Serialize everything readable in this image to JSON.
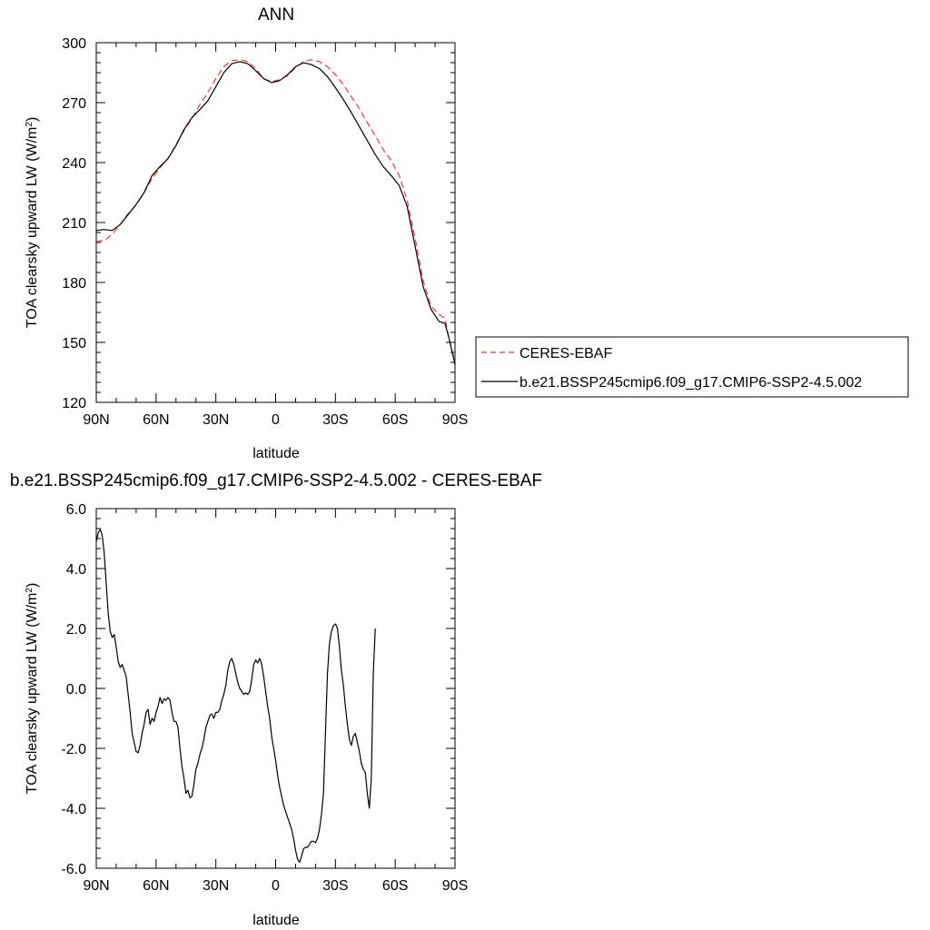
{
  "chart_data": [
    {
      "type": "line",
      "title": "ANN",
      "xlabel": "latitude",
      "ylabel": "TOA clearsky upward LW (W/m",
      "ylabel_sup": "2",
      "ylabel_end": ")",
      "xlim": [
        90,
        -90
      ],
      "ylim": [
        120,
        300
      ],
      "x_ticks": [
        {
          "value": 90,
          "label": "90N"
        },
        {
          "value": 60,
          "label": "60N"
        },
        {
          "value": 30,
          "label": "30N"
        },
        {
          "value": 0,
          "label": "0"
        },
        {
          "value": -30,
          "label": "30S"
        },
        {
          "value": -60,
          "label": "60S"
        },
        {
          "value": -90,
          "label": "90S"
        }
      ],
      "y_ticks": [
        {
          "value": 120,
          "label": "120"
        },
        {
          "value": 150,
          "label": "150"
        },
        {
          "value": 180,
          "label": "180"
        },
        {
          "value": 210,
          "label": "210"
        },
        {
          "value": 240,
          "label": "240"
        },
        {
          "value": 270,
          "label": "270"
        },
        {
          "value": 300,
          "label": "300"
        }
      ],
      "legend": {
        "placement": "right",
        "entries": [
          {
            "series": 0,
            "label": "CERES-EBAF"
          },
          {
            "series": 1,
            "label": "b.e21.BSSP245cmip6.f09_g17.CMIP6-SSP2-4.5.002"
          }
        ]
      },
      "series": [
        {
          "name": "CERES-EBAF",
          "color": "#ff3030",
          "dash": "dashed",
          "points": [
            [
              90,
              200.5
            ],
            [
              86,
              201
            ],
            [
              82,
              204
            ],
            [
              78,
              209
            ],
            [
              74,
              214.5
            ],
            [
              70,
              219
            ],
            [
              66,
              225
            ],
            [
              62,
              232
            ],
            [
              58,
              237.5
            ],
            [
              54,
              242
            ],
            [
              50,
              249
            ],
            [
              46,
              256
            ],
            [
              42,
              262
            ],
            [
              38,
              269
            ],
            [
              34,
              275
            ],
            [
              30,
              282
            ],
            [
              26,
              288
            ],
            [
              22,
              291
            ],
            [
              18,
              291.5
            ],
            [
              14,
              290.5
            ],
            [
              10,
              287
            ],
            [
              6,
              282
            ],
            [
              2,
              280.5
            ],
            [
              -2,
              281.5
            ],
            [
              -6,
              283.5
            ],
            [
              -10,
              287.5
            ],
            [
              -14,
              290.5
            ],
            [
              -18,
              291.5
            ],
            [
              -22,
              290.5
            ],
            [
              -26,
              288
            ],
            [
              -30,
              284
            ],
            [
              -34,
              279
            ],
            [
              -38,
              273
            ],
            [
              -42,
              267
            ],
            [
              -46,
              260
            ],
            [
              -50,
              253.5
            ],
            [
              -54,
              246.5
            ],
            [
              -58,
              241
            ],
            [
              -62,
              233.5
            ],
            [
              -66,
              221
            ],
            [
              -70,
              202
            ],
            [
              -74,
              181
            ],
            [
              -78,
              168
            ],
            [
              -82,
              164
            ],
            [
              -85,
              162
            ],
            [
              -87,
              152
            ],
            [
              -90,
              140
            ]
          ]
        },
        {
          "name": "b.e21.BSSP245cmip6.f09_g17.CMIP6-SSP2-4.5.002",
          "color": "#000000",
          "dash": "solid",
          "points": [
            [
              90,
              206
            ],
            [
              86,
              206.5
            ],
            [
              82,
              206
            ],
            [
              78,
              209
            ],
            [
              74,
              214
            ],
            [
              70,
              219
            ],
            [
              66,
              225
            ],
            [
              62,
              233.5
            ],
            [
              58,
              238
            ],
            [
              54,
              242
            ],
            [
              50,
              248.5
            ],
            [
              46,
              256.5
            ],
            [
              42,
              262.5
            ],
            [
              38,
              266.5
            ],
            [
              34,
              271
            ],
            [
              30,
              278
            ],
            [
              26,
              285
            ],
            [
              22,
              289.5
            ],
            [
              18,
              290.5
            ],
            [
              14,
              289.5
            ],
            [
              10,
              286
            ],
            [
              6,
              282
            ],
            [
              2,
              280
            ],
            [
              -2,
              281
            ],
            [
              -6,
              284
            ],
            [
              -10,
              288
            ],
            [
              -14,
              290
            ],
            [
              -18,
              289
            ],
            [
              -22,
              287
            ],
            [
              -26,
              283
            ],
            [
              -30,
              277.5
            ],
            [
              -34,
              271.5
            ],
            [
              -38,
              265
            ],
            [
              -42,
              258
            ],
            [
              -46,
              251
            ],
            [
              -50,
              244
            ],
            [
              -54,
              238
            ],
            [
              -58,
              233.5
            ],
            [
              -62,
              228.5
            ],
            [
              -66,
              218
            ],
            [
              -70,
              198
            ],
            [
              -74,
              178
            ],
            [
              -78,
              166.5
            ],
            [
              -82,
              160.5
            ],
            [
              -85,
              159.5
            ],
            [
              -87,
              152
            ],
            [
              -90,
              139
            ]
          ]
        }
      ]
    },
    {
      "type": "line",
      "title": "b.e21.BSSP245cmip6.f09_g17.CMIP6-SSP2-4.5.002 - CERES-EBAF",
      "xlabel": "latitude",
      "ylabel": "TOA clearsky upward LW (W/m",
      "ylabel_sup": "2",
      "ylabel_end": ")",
      "xlim": [
        90,
        -90
      ],
      "ylim": [
        -6,
        6
      ],
      "x_ticks": [
        {
          "value": 90,
          "label": "90N"
        },
        {
          "value": 60,
          "label": "60N"
        },
        {
          "value": 30,
          "label": "30N"
        },
        {
          "value": 0,
          "label": "0"
        },
        {
          "value": -30,
          "label": "30S"
        },
        {
          "value": -60,
          "label": "60S"
        },
        {
          "value": -90,
          "label": "90S"
        }
      ],
      "y_ticks": [
        {
          "value": 6,
          "label": "6.0"
        },
        {
          "value": 4,
          "label": "4.0"
        },
        {
          "value": 2,
          "label": "2.0"
        },
        {
          "value": 0,
          "label": "0.0"
        },
        {
          "value": -2,
          "label": "-2.0"
        },
        {
          "value": -4,
          "label": "-4.0"
        },
        {
          "value": -6,
          "label": "-6.0"
        }
      ],
      "series": [
        {
          "name": "",
          "color": "#000000",
          "dash": "solid",
          "points": [
            [
              90,
              4.9
            ],
            [
              89,
              5.2
            ],
            [
              88,
              5.3
            ],
            [
              87,
              5.1
            ],
            [
              86,
              4.5
            ],
            [
              85,
              3.5
            ],
            [
              84,
              2.5
            ],
            [
              83,
              1.9
            ],
            [
              82,
              1.7
            ],
            [
              81,
              1.8
            ],
            [
              80,
              1.4
            ],
            [
              79,
              0.9
            ],
            [
              78,
              0.7
            ],
            [
              77,
              0.8
            ],
            [
              76,
              0.6
            ],
            [
              75,
              0.4
            ],
            [
              74,
              -0.2
            ],
            [
              73,
              -0.8
            ],
            [
              72,
              -1.5
            ],
            [
              71,
              -1.8
            ],
            [
              70,
              -2.1
            ],
            [
              69,
              -2.15
            ],
            [
              68,
              -1.9
            ],
            [
              67,
              -1.5
            ],
            [
              66,
              -1.2
            ],
            [
              65,
              -0.8
            ],
            [
              64,
              -0.7
            ],
            [
              63,
              -1.2
            ],
            [
              62,
              -1.0
            ],
            [
              61,
              -1.1
            ],
            [
              60,
              -0.8
            ],
            [
              59,
              -0.6
            ],
            [
              58,
              -0.3
            ],
            [
              57,
              -0.5
            ],
            [
              56,
              -0.35
            ],
            [
              55,
              -0.4
            ],
            [
              54,
              -0.3
            ],
            [
              53,
              -0.4
            ],
            [
              52,
              -0.8
            ],
            [
              51,
              -1.1
            ],
            [
              50,
              -1.1
            ],
            [
              49,
              -1.3
            ],
            [
              48,
              -2.0
            ],
            [
              47,
              -2.6
            ],
            [
              46,
              -3.0
            ],
            [
              45,
              -3.5
            ],
            [
              44,
              -3.4
            ],
            [
              43,
              -3.65
            ],
            [
              42,
              -3.6
            ],
            [
              41,
              -3.2
            ],
            [
              40,
              -2.7
            ],
            [
              39,
              -2.5
            ],
            [
              38,
              -2.2
            ],
            [
              37,
              -2.0
            ],
            [
              36,
              -1.7
            ],
            [
              35,
              -1.3
            ],
            [
              34,
              -1.1
            ],
            [
              33,
              -0.9
            ],
            [
              32,
              -0.85
            ],
            [
              31,
              -1.0
            ],
            [
              30,
              -0.8
            ],
            [
              29,
              -0.8
            ],
            [
              28,
              -0.7
            ],
            [
              27,
              -0.4
            ],
            [
              26,
              -0.2
            ],
            [
              25,
              0.1
            ],
            [
              24,
              0.6
            ],
            [
              23,
              0.9
            ],
            [
              22,
              1.0
            ],
            [
              21,
              0.8
            ],
            [
              20,
              0.5
            ],
            [
              19,
              0.2
            ],
            [
              18,
              0.0
            ],
            [
              17,
              -0.1
            ],
            [
              16,
              -0.2
            ],
            [
              15,
              -0.15
            ],
            [
              14,
              -0.2
            ],
            [
              13,
              -0.1
            ],
            [
              12,
              0.3
            ],
            [
              11,
              0.8
            ],
            [
              10,
              0.95
            ],
            [
              9,
              0.85
            ],
            [
              8,
              1.0
            ],
            [
              7,
              0.8
            ],
            [
              6,
              0.4
            ],
            [
              5,
              -0.1
            ],
            [
              4,
              -0.6
            ],
            [
              3,
              -1.0
            ],
            [
              2,
              -1.6
            ],
            [
              1,
              -2.0
            ],
            [
              0,
              -2.4
            ],
            [
              -1,
              -2.9
            ],
            [
              -2,
              -3.3
            ],
            [
              -3,
              -3.6
            ],
            [
              -4,
              -3.9
            ],
            [
              -5,
              -4.1
            ],
            [
              -6,
              -4.3
            ],
            [
              -7,
              -4.5
            ],
            [
              -8,
              -4.7
            ],
            [
              -9,
              -5.0
            ],
            [
              -10,
              -5.4
            ],
            [
              -11,
              -5.7
            ],
            [
              -12,
              -5.8
            ],
            [
              -13,
              -5.6
            ],
            [
              -14,
              -5.35
            ],
            [
              -15,
              -5.3
            ],
            [
              -16,
              -5.3
            ],
            [
              -17,
              -5.2
            ],
            [
              -18,
              -5.1
            ],
            [
              -19,
              -5.1
            ],
            [
              -20,
              -5.15
            ],
            [
              -21,
              -5.0
            ],
            [
              -22,
              -4.7
            ],
            [
              -23,
              -4.2
            ],
            [
              -24,
              -3.5
            ],
            [
              -25,
              -1.5
            ],
            [
              -26,
              0.5
            ],
            [
              -27,
              1.5
            ],
            [
              -28,
              1.9
            ],
            [
              -29,
              2.1
            ],
            [
              -30,
              2.15
            ],
            [
              -31,
              2.0
            ],
            [
              -32,
              1.4
            ],
            [
              -33,
              0.6
            ],
            [
              -34,
              0.1
            ],
            [
              -35,
              -0.6
            ],
            [
              -36,
              -1.2
            ],
            [
              -37,
              -1.7
            ],
            [
              -38,
              -1.9
            ],
            [
              -39,
              -1.6
            ],
            [
              -40,
              -1.5
            ],
            [
              -41,
              -1.8
            ],
            [
              -42,
              -2.1
            ],
            [
              -43,
              -2.5
            ],
            [
              -44,
              -2.7
            ],
            [
              -45,
              -2.8
            ],
            [
              -46,
              -3.5
            ],
            [
              -47,
              -4.0
            ],
            [
              -48,
              -3.0
            ],
            [
              -49,
              0.5
            ],
            [
              -50,
              2.0
            ]
          ]
        }
      ]
    }
  ]
}
